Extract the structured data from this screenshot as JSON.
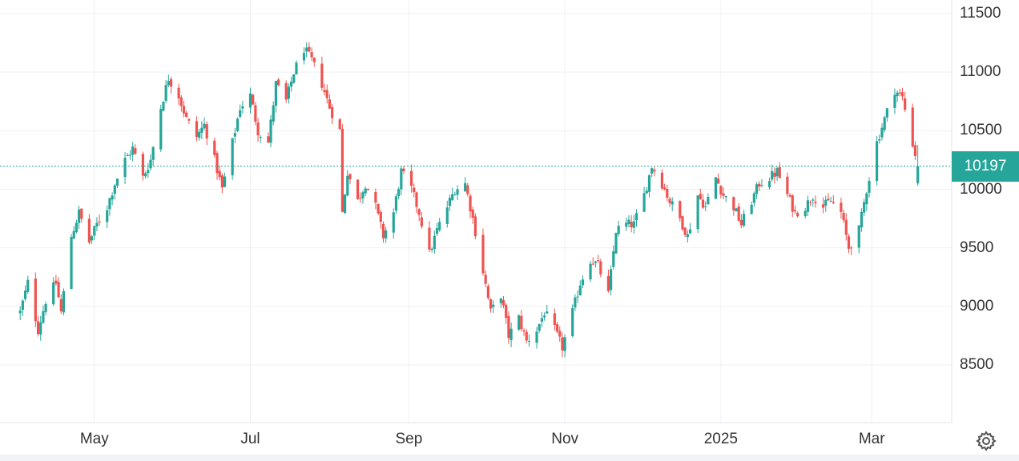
{
  "chart_data": {
    "type": "candlestick",
    "title": "",
    "xlabel": "",
    "ylabel": "",
    "ylim": [
      8000,
      11600
    ],
    "y_ticks": [
      8500,
      9000,
      9500,
      10000,
      10500,
      11000,
      11500
    ],
    "x_ticks": [
      {
        "label": "May",
        "date": "2024-05-01"
      },
      {
        "label": "Jul",
        "date": "2024-07-01"
      },
      {
        "label": "Sep",
        "date": "2024-09-01"
      },
      {
        "label": "Nov",
        "date": "2024-11-01"
      },
      {
        "label": "2025",
        "date": "2025-01-01"
      },
      {
        "label": "Mar",
        "date": "2025-03-01"
      }
    ],
    "x_range": [
      "2024-04-01",
      "2025-03-26"
    ],
    "last_price": 10197,
    "last_price_label": "10197",
    "up_color": "#26a69a",
    "down_color": "#ef5350",
    "grid": true,
    "close_path": [
      [
        "2024-04-02",
        8950
      ],
      [
        "2024-04-05",
        9200
      ],
      [
        "2024-04-09",
        8800
      ],
      [
        "2024-04-12",
        9050
      ],
      [
        "2024-04-16",
        9200
      ],
      [
        "2024-04-18",
        8950
      ],
      [
        "2024-04-22",
        9600
      ],
      [
        "2024-04-25",
        9800
      ],
      [
        "2024-04-29",
        9550
      ],
      [
        "2024-05-02",
        9700
      ],
      [
        "2024-05-06",
        9850
      ],
      [
        "2024-05-09",
        10050
      ],
      [
        "2024-05-13",
        10250
      ],
      [
        "2024-05-16",
        10350
      ],
      [
        "2024-05-20",
        10100
      ],
      [
        "2024-05-23",
        10250
      ],
      [
        "2024-05-27",
        10700
      ],
      [
        "2024-05-30",
        10950
      ],
      [
        "2024-06-03",
        10800
      ],
      [
        "2024-06-06",
        10600
      ],
      [
        "2024-06-10",
        10450
      ],
      [
        "2024-06-13",
        10550
      ],
      [
        "2024-06-17",
        10250
      ],
      [
        "2024-06-20",
        10000
      ],
      [
        "2024-06-24",
        10400
      ],
      [
        "2024-06-27",
        10700
      ],
      [
        "2024-07-01",
        10800
      ],
      [
        "2024-07-04",
        10500
      ],
      [
        "2024-07-08",
        10400
      ],
      [
        "2024-07-11",
        10900
      ],
      [
        "2024-07-15",
        10750
      ],
      [
        "2024-07-18",
        11000
      ],
      [
        "2024-07-22",
        11200
      ],
      [
        "2024-07-25",
        11100
      ],
      [
        "2024-07-29",
        10900
      ],
      [
        "2024-08-01",
        10700
      ],
      [
        "2024-08-05",
        10500
      ],
      [
        "2024-08-06",
        9800
      ],
      [
        "2024-08-08",
        10150
      ],
      [
        "2024-08-12",
        9900
      ],
      [
        "2024-08-15",
        10050
      ],
      [
        "2024-08-19",
        9850
      ],
      [
        "2024-08-22",
        9600
      ],
      [
        "2024-08-26",
        9800
      ],
      [
        "2024-08-29",
        10150
      ],
      [
        "2024-09-02",
        10000
      ],
      [
        "2024-09-05",
        9800
      ],
      [
        "2024-09-09",
        9450
      ],
      [
        "2024-09-12",
        9650
      ],
      [
        "2024-09-16",
        9850
      ],
      [
        "2024-09-19",
        10000
      ],
      [
        "2024-09-23",
        10050
      ],
      [
        "2024-09-26",
        9750
      ],
      [
        "2024-09-30",
        9300
      ],
      [
        "2024-10-03",
        8950
      ],
      [
        "2024-10-07",
        9100
      ],
      [
        "2024-10-10",
        8750
      ],
      [
        "2024-10-14",
        8900
      ],
      [
        "2024-10-17",
        8700
      ],
      [
        "2024-10-21",
        8800
      ],
      [
        "2024-10-24",
        8950
      ],
      [
        "2024-10-28",
        8800
      ],
      [
        "2024-10-31",
        8650
      ],
      [
        "2024-11-04",
        8950
      ],
      [
        "2024-11-07",
        9200
      ],
      [
        "2024-11-11",
        9400
      ],
      [
        "2024-11-14",
        9350
      ],
      [
        "2024-11-18",
        9100
      ],
      [
        "2024-11-21",
        9650
      ],
      [
        "2024-11-25",
        9700
      ],
      [
        "2024-11-28",
        9700
      ],
      [
        "2024-12-02",
        9950
      ],
      [
        "2024-12-05",
        10200
      ],
      [
        "2024-12-09",
        10050
      ],
      [
        "2024-12-12",
        9900
      ],
      [
        "2024-12-16",
        9750
      ],
      [
        "2024-12-19",
        9600
      ],
      [
        "2024-12-23",
        9950
      ],
      [
        "2024-12-26",
        9850
      ],
      [
        "2024-12-30",
        10100
      ],
      [
        "2025-01-02",
        9950
      ],
      [
        "2025-01-06",
        9850
      ],
      [
        "2025-01-09",
        9700
      ],
      [
        "2025-01-13",
        9900
      ],
      [
        "2025-01-16",
        10050
      ],
      [
        "2025-01-20",
        10100
      ],
      [
        "2025-01-23",
        10150
      ],
      [
        "2025-01-27",
        9950
      ],
      [
        "2025-01-30",
        9800
      ],
      [
        "2025-02-03",
        9850
      ],
      [
        "2025-02-06",
        9950
      ],
      [
        "2025-02-10",
        9850
      ],
      [
        "2025-02-13",
        9900
      ],
      [
        "2025-02-17",
        9800
      ],
      [
        "2025-02-20",
        9500
      ],
      [
        "2025-02-24",
        9650
      ],
      [
        "2025-02-27",
        10000
      ],
      [
        "2025-03-03",
        10400
      ],
      [
        "2025-03-06",
        10600
      ],
      [
        "2025-03-10",
        10850
      ],
      [
        "2025-03-13",
        10780
      ],
      [
        "2025-03-19",
        10197
      ]
    ]
  }
}
